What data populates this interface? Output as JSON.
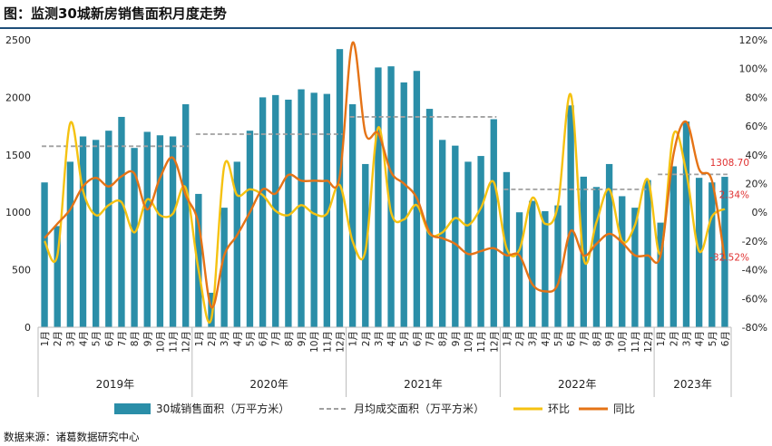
{
  "title": "图：监测30城新房销售面积月度走势",
  "source": "数据来源：诸葛数据研究中心",
  "colors": {
    "bar": "#2a8ea8",
    "avg": "#a0a0a0",
    "mom": "#f5c211",
    "yoy": "#e57316",
    "annot": "#e03030"
  },
  "chart_data": {
    "type": "bar",
    "left_axis": {
      "min": 0,
      "max": 2500,
      "step": 500,
      "ticks": [
        "0",
        "500",
        "1000",
        "1500",
        "2000",
        "2500"
      ]
    },
    "right_axis": {
      "min": -80,
      "max": 120,
      "step": 20,
      "ticks": [
        "-80%",
        "-60%",
        "-40%",
        "-20%",
        "0%",
        "20%",
        "40%",
        "60%",
        "80%",
        "100%",
        "120%"
      ]
    },
    "month_labels": [
      "1月",
      "2月",
      "3月",
      "4月",
      "5月",
      "6月",
      "7月",
      "8月",
      "9月",
      "10月",
      "11月",
      "12月"
    ],
    "years": [
      "2019年",
      "2020年",
      "2021年",
      "2022年",
      "2023年"
    ],
    "year_counts": [
      12,
      12,
      12,
      12,
      6
    ],
    "series": [
      {
        "name": "30城销售面积（万平方米）",
        "type": "bar",
        "values": [
          1260,
          880,
          1440,
          1660,
          1630,
          1710,
          1830,
          1560,
          1700,
          1670,
          1660,
          1940,
          1160,
          300,
          1040,
          1440,
          1710,
          2000,
          2020,
          1980,
          2070,
          2040,
          2030,
          2420,
          1940,
          1420,
          2260,
          2270,
          2130,
          2230,
          1900,
          1630,
          1580,
          1440,
          1490,
          1810,
          1350,
          1000,
          1100,
          1010,
          1060,
          1930,
          1310,
          1220,
          1420,
          1140,
          1040,
          1280,
          910,
          1400,
          1790,
          1300,
          1260,
          1308.7
        ]
      },
      {
        "name": "月均成交面积（万平方米）",
        "type": "line",
        "values": [
          1575,
          1575,
          1575,
          1575,
          1575,
          1575,
          1575,
          1575,
          1575,
          1575,
          1575,
          1575,
          1680,
          1680,
          1680,
          1680,
          1680,
          1680,
          1680,
          1680,
          1680,
          1680,
          1680,
          1680,
          1830,
          1830,
          1830,
          1830,
          1830,
          1830,
          1830,
          1830,
          1830,
          1830,
          1830,
          1830,
          1200,
          1200,
          1200,
          1200,
          1200,
          1200,
          1200,
          1200,
          1200,
          1200,
          1200,
          1200,
          1330,
          1330,
          1330,
          1330,
          1330,
          1330
        ]
      },
      {
        "name": "环比",
        "type": "line",
        "values": [
          -20,
          -30,
          62,
          15,
          -2,
          5,
          7,
          -14,
          9,
          -2,
          -1,
          17,
          -40,
          -74,
          32,
          12,
          16,
          12,
          1,
          -2,
          5,
          -1,
          -1,
          19,
          -20,
          -27,
          59,
          0,
          -5,
          5,
          -15,
          -14,
          -4,
          -9,
          3,
          21,
          -25,
          -26,
          10,
          -8,
          5,
          82,
          -32,
          -7,
          16,
          -20,
          -9,
          23,
          -29,
          54,
          28,
          -27,
          -3,
          2.34
        ]
      },
      {
        "name": "同比",
        "type": "line",
        "values": [
          -18,
          -8,
          2,
          18,
          24,
          18,
          25,
          27,
          2,
          24,
          38,
          12,
          -8,
          -66,
          -30,
          -16,
          0,
          16,
          13,
          26,
          22,
          22,
          22,
          25,
          118,
          55,
          55,
          28,
          20,
          10,
          -14,
          -18,
          -22,
          -29,
          -27,
          -25,
          -30,
          -30,
          -50,
          -55,
          -50,
          -13,
          -30,
          -22,
          -15,
          -21,
          -30,
          -30,
          -30,
          40,
          63,
          30,
          22,
          -32.52
        ]
      }
    ],
    "annotations": [
      "1308.70",
      "2.34%",
      "-32.52%"
    ]
  }
}
